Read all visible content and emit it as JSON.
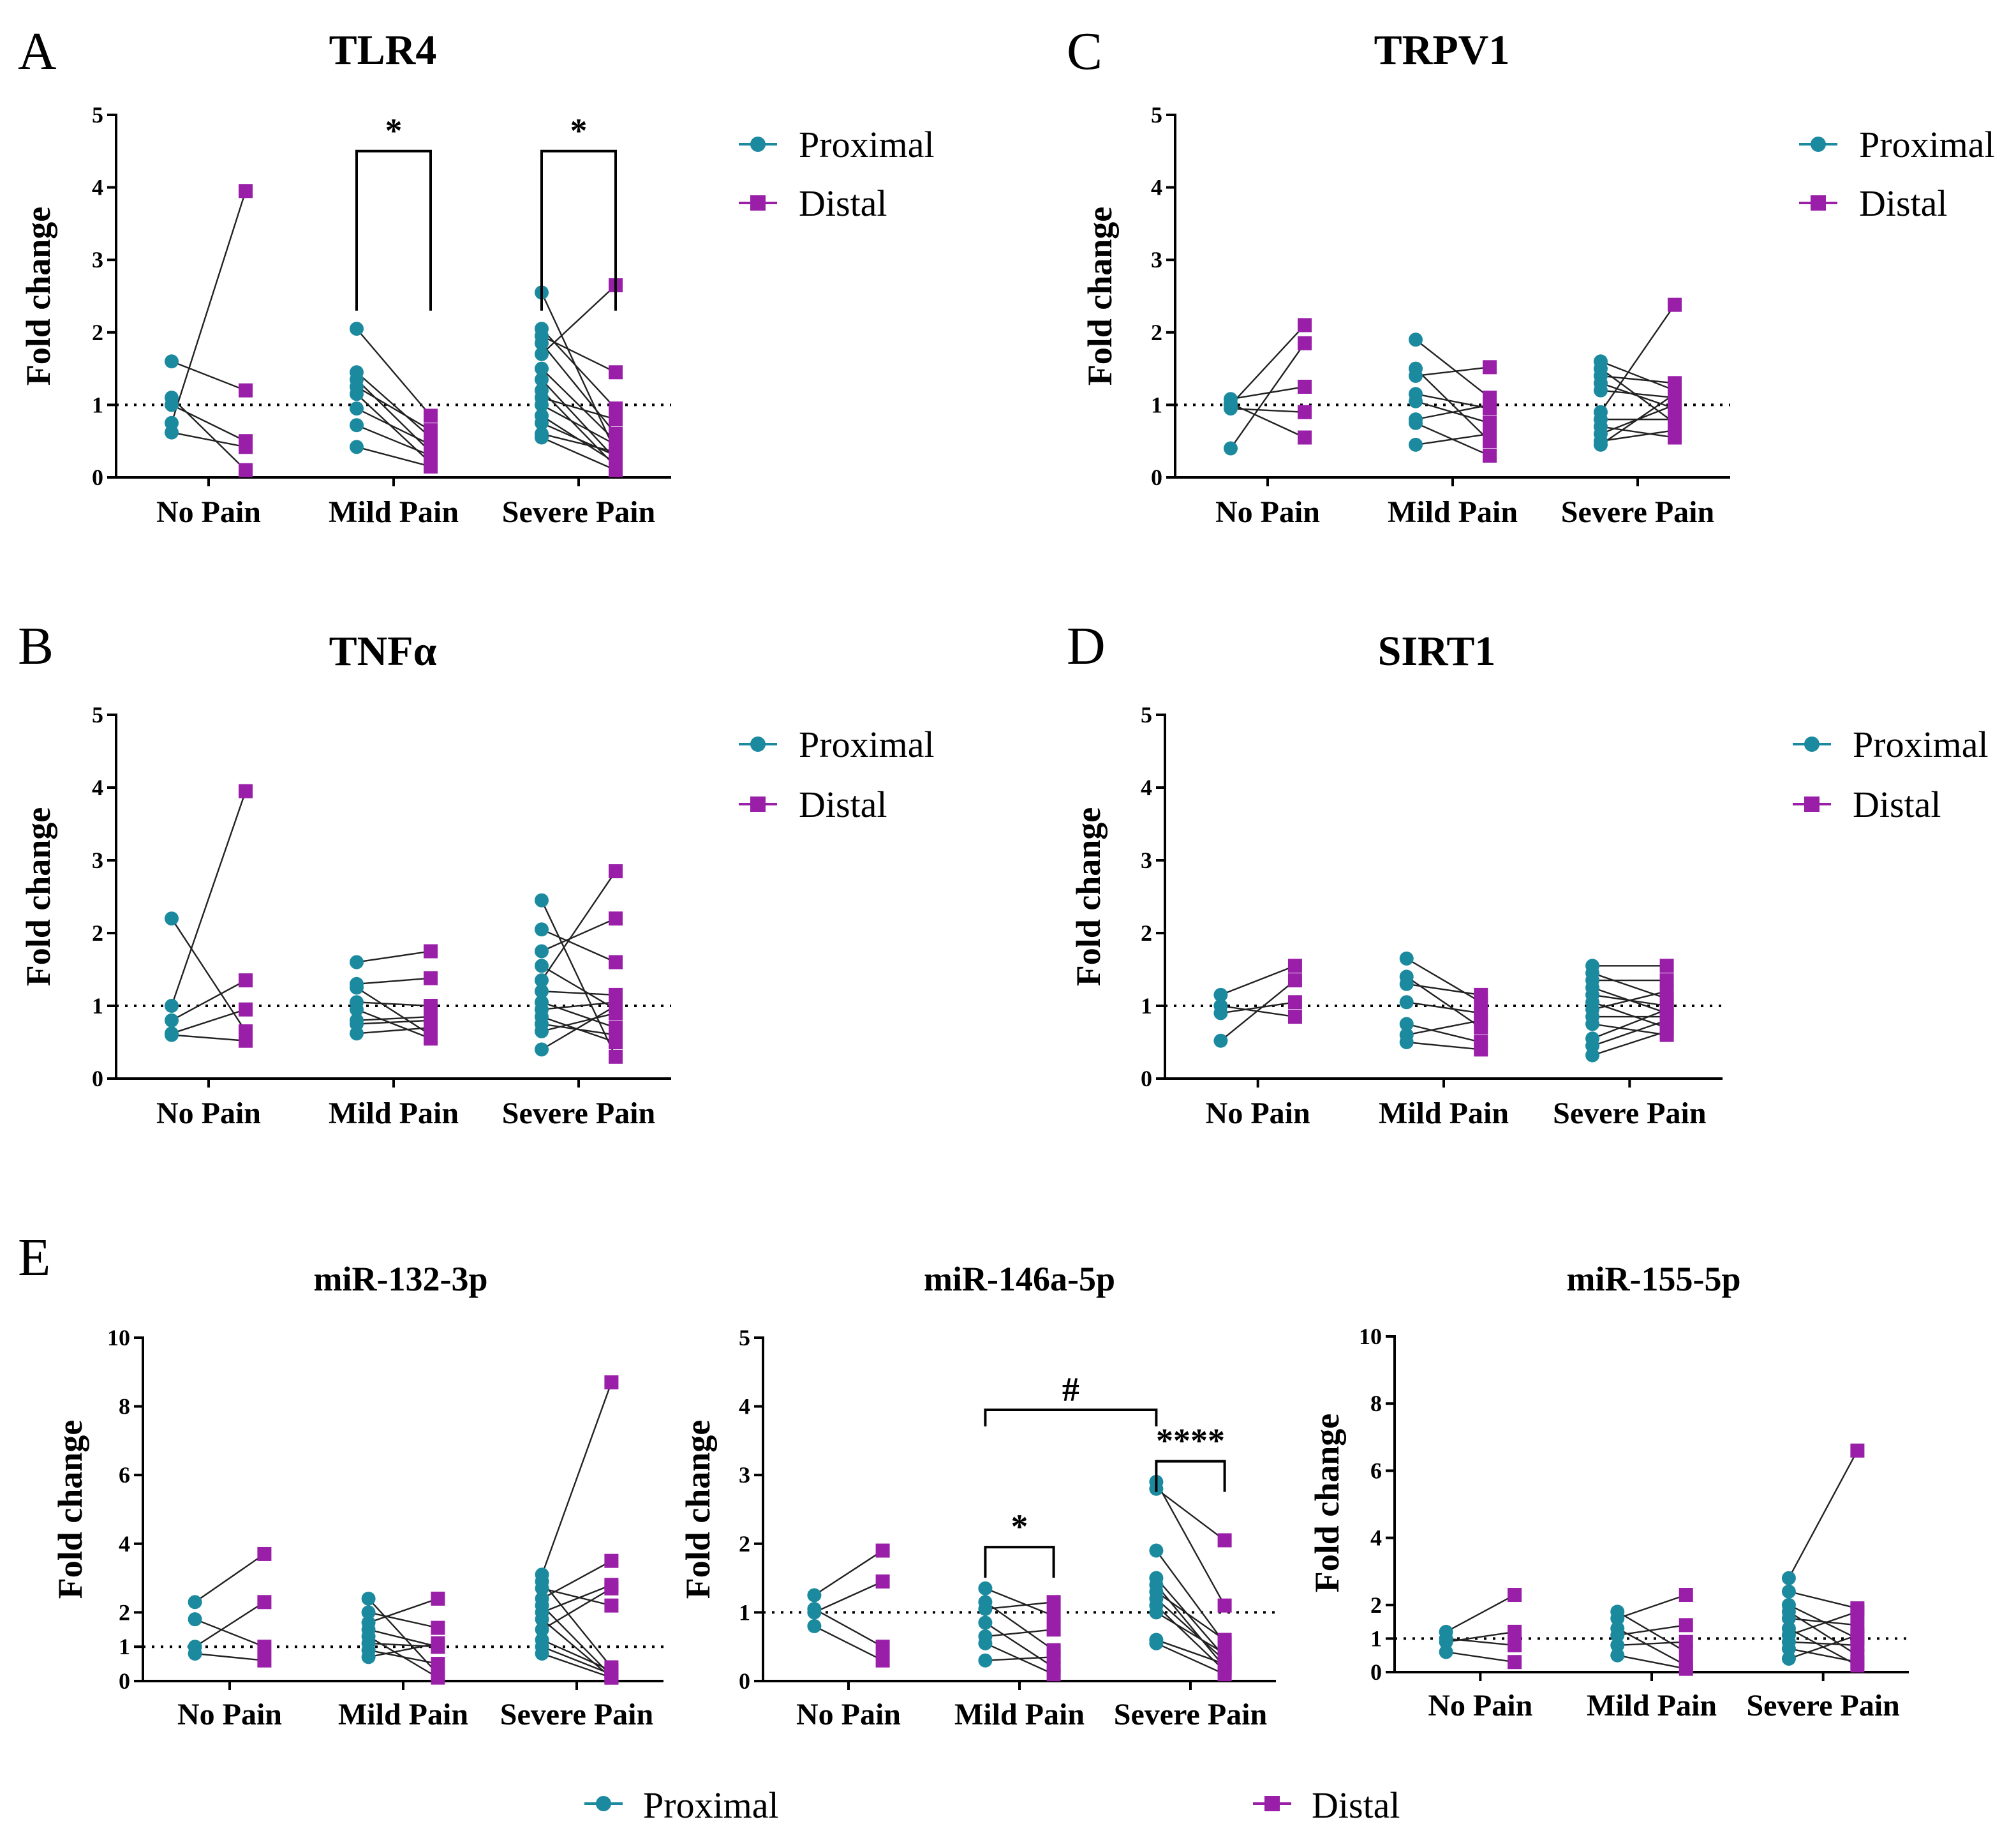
{
  "figure": {
    "colors": {
      "proximal": "#1b8a9e",
      "distal": "#9a1fa8",
      "axis": "#000000",
      "line": "#222222"
    },
    "legend": {
      "proximal": "Proximal",
      "distal": "Distal"
    }
  },
  "chart_data": [
    {
      "panel": "A",
      "title": "TLR4",
      "type": "scatter",
      "ylabel": "Fold change",
      "categories": [
        "No Pain",
        "Mild Pain",
        "Severe Pain"
      ],
      "ylim": [
        0,
        5
      ],
      "yticks": [
        "0",
        "1",
        "2",
        "3",
        "4",
        "5"
      ],
      "reference_line": 1,
      "pairs": [
        [
          [
            1.6,
            1.2
          ],
          [
            1.1,
            0.1
          ],
          [
            1.0,
            0.5
          ],
          [
            0.75,
            3.95
          ],
          [
            0.62,
            0.42
          ]
        ],
        [
          [
            2.05,
            0.85
          ],
          [
            1.45,
            0.55
          ],
          [
            1.35,
            0.35
          ],
          [
            1.25,
            0.65
          ],
          [
            1.15,
            0.2
          ],
          [
            0.95,
            0.45
          ],
          [
            0.72,
            0.3
          ],
          [
            0.42,
            0.15
          ]
        ],
        [
          [
            2.55,
            0.35
          ],
          [
            2.05,
            0.95
          ],
          [
            1.95,
            1.45
          ],
          [
            1.85,
            0.6
          ],
          [
            1.7,
            2.65
          ],
          [
            1.5,
            0.5
          ],
          [
            1.35,
            0.25
          ],
          [
            1.2,
            0.15
          ],
          [
            1.1,
            0.8
          ],
          [
            1.0,
            0.45
          ],
          [
            0.85,
            0.2
          ],
          [
            0.75,
            0.3
          ],
          [
            0.6,
            0.35
          ],
          [
            0.55,
            0.1
          ]
        ]
      ],
      "brackets": [
        {
          "from": 1,
          "to": 1,
          "level": 4.5,
          "label": "*",
          "style": "pair"
        },
        {
          "from": 2,
          "to": 2,
          "level": 4.5,
          "label": "*",
          "style": "pair"
        }
      ]
    },
    {
      "panel": "B",
      "title": "TNFα",
      "type": "scatter",
      "ylabel": "Fold change",
      "categories": [
        "No Pain",
        "Mild Pain",
        "Severe Pain"
      ],
      "ylim": [
        0,
        5
      ],
      "yticks": [
        "0",
        "1",
        "2",
        "3",
        "4",
        "5"
      ],
      "reference_line": 1,
      "pairs": [
        [
          [
            2.2,
            0.65
          ],
          [
            1.0,
            3.95
          ],
          [
            0.8,
            1.35
          ],
          [
            0.62,
            0.95
          ],
          [
            0.6,
            0.52
          ]
        ],
        [
          [
            1.6,
            1.75
          ],
          [
            1.3,
            1.38
          ],
          [
            1.25,
            0.6
          ],
          [
            1.05,
            1.0
          ],
          [
            0.95,
            0.55
          ],
          [
            0.8,
            0.85
          ],
          [
            0.75,
            0.8
          ],
          [
            0.62,
            0.7
          ]
        ],
        [
          [
            2.45,
            0.3
          ],
          [
            2.05,
            1.6
          ],
          [
            1.75,
            2.2
          ],
          [
            1.55,
            0.95
          ],
          [
            1.35,
            2.85
          ],
          [
            1.2,
            1.15
          ],
          [
            1.05,
            0.7
          ],
          [
            0.95,
            1.05
          ],
          [
            0.85,
            0.5
          ],
          [
            0.75,
            0.6
          ],
          [
            0.65,
            0.9
          ],
          [
            0.4,
            1.0
          ]
        ]
      ],
      "brackets": []
    },
    {
      "panel": "C",
      "title": "TRPV1",
      "type": "scatter",
      "ylabel": "Fold change",
      "categories": [
        "No Pain",
        "Mild Pain",
        "Severe Pain"
      ],
      "ylim": [
        0,
        5
      ],
      "yticks": [
        "0",
        "1",
        "2",
        "3",
        "4",
        "5"
      ],
      "reference_line": 1,
      "pairs": [
        [
          [
            1.08,
            1.25
          ],
          [
            1.02,
            0.55
          ],
          [
            1.0,
            2.1
          ],
          [
            0.95,
            0.9
          ],
          [
            0.4,
            1.85
          ]
        ],
        [
          [
            1.9,
            1.1
          ],
          [
            1.5,
            0.5
          ],
          [
            1.4,
            1.52
          ],
          [
            1.15,
            0.95
          ],
          [
            1.05,
            0.75
          ],
          [
            0.8,
            1.0
          ],
          [
            0.75,
            0.3
          ],
          [
            0.45,
            0.6
          ]
        ],
        [
          [
            1.6,
            1.2
          ],
          [
            1.5,
            0.75
          ],
          [
            1.4,
            1.3
          ],
          [
            1.3,
            0.95
          ],
          [
            1.2,
            1.1
          ],
          [
            0.9,
            2.38
          ],
          [
            0.8,
            0.8
          ],
          [
            0.7,
            0.55
          ],
          [
            0.6,
            1.0
          ],
          [
            0.5,
            0.65
          ],
          [
            0.45,
            1.15
          ]
        ]
      ],
      "brackets": []
    },
    {
      "panel": "D",
      "title": "SIRT1",
      "type": "scatter",
      "ylabel": "Fold change",
      "categories": [
        "No Pain",
        "Mild Pain",
        "Severe Pain"
      ],
      "ylim": [
        0,
        5
      ],
      "yticks": [
        "0",
        "1",
        "2",
        "3",
        "4",
        "5"
      ],
      "reference_line": 1,
      "pairs": [
        [
          [
            1.15,
            1.55
          ],
          [
            1.0,
            0.85
          ],
          [
            0.9,
            1.05
          ],
          [
            0.52,
            1.35
          ]
        ],
        [
          [
            1.65,
            1.05
          ],
          [
            1.4,
            0.7
          ],
          [
            1.3,
            1.15
          ],
          [
            1.05,
            0.9
          ],
          [
            0.75,
            0.5
          ],
          [
            0.6,
            0.8
          ],
          [
            0.5,
            0.4
          ]
        ],
        [
          [
            1.55,
            1.55
          ],
          [
            1.45,
            1.1
          ],
          [
            1.35,
            1.35
          ],
          [
            1.25,
            0.9
          ],
          [
            1.15,
            1.0
          ],
          [
            1.05,
            0.7
          ],
          [
            0.95,
            1.2
          ],
          [
            0.85,
            0.85
          ],
          [
            0.75,
            0.6
          ],
          [
            0.55,
            0.95
          ],
          [
            0.45,
            0.8
          ],
          [
            0.32,
            0.65
          ]
        ]
      ],
      "brackets": []
    },
    {
      "panel": "E",
      "title": "miR-132-3p",
      "type": "scatter",
      "ylabel": "Fold change",
      "categories": [
        "No Pain",
        "Mild Pain",
        "Severe Pain"
      ],
      "ylim": [
        0,
        10
      ],
      "yticks": [
        "0",
        "1",
        "2",
        "4",
        "6",
        "8",
        "10"
      ],
      "reference_line": 1,
      "pairs": [
        [
          [
            2.3,
            3.7
          ],
          [
            1.8,
            1.0
          ],
          [
            1.0,
            2.3
          ],
          [
            0.8,
            0.6
          ]
        ],
        [
          [
            2.4,
            0.2
          ],
          [
            2.0,
            1.55
          ],
          [
            1.7,
            2.4
          ],
          [
            1.5,
            1.0
          ],
          [
            1.3,
            0.1
          ],
          [
            1.1,
            1.0
          ],
          [
            0.9,
            0.5
          ],
          [
            0.7,
            1.1
          ]
        ],
        [
          [
            3.1,
            8.7
          ],
          [
            2.9,
            0.4
          ],
          [
            2.7,
            2.2
          ],
          [
            2.4,
            3.5
          ],
          [
            2.2,
            0.15
          ],
          [
            2.0,
            2.8
          ],
          [
            1.8,
            0.1
          ],
          [
            1.5,
            2.7
          ],
          [
            1.2,
            0.3
          ],
          [
            1.0,
            0.2
          ],
          [
            0.8,
            0.1
          ]
        ]
      ],
      "brackets": []
    },
    {
      "panel": "",
      "title": "miR-146a-5p",
      "type": "scatter",
      "ylabel": "Fold change",
      "categories": [
        "No Pain",
        "Mild Pain",
        "Severe Pain"
      ],
      "ylim": [
        0,
        5
      ],
      "yticks": [
        "0",
        "1",
        "2",
        "3",
        "4",
        "5"
      ],
      "reference_line": 1,
      "pairs": [
        [
          [
            1.25,
            1.9
          ],
          [
            1.05,
            0.5
          ],
          [
            1.0,
            1.45
          ],
          [
            0.8,
            0.3
          ]
        ],
        [
          [
            1.35,
            0.95
          ],
          [
            1.15,
            0.45
          ],
          [
            1.05,
            1.15
          ],
          [
            0.85,
            0.2
          ],
          [
            0.65,
            0.75
          ],
          [
            0.55,
            0.1
          ],
          [
            0.3,
            0.35
          ]
        ],
        [
          [
            2.9,
            1.1
          ],
          [
            2.8,
            2.05
          ],
          [
            1.9,
            0.55
          ],
          [
            1.5,
            0.35
          ],
          [
            1.4,
            0.2
          ],
          [
            1.3,
            0.6
          ],
          [
            1.2,
            0.3
          ],
          [
            1.1,
            0.15
          ],
          [
            1.0,
            0.4
          ],
          [
            0.6,
            0.25
          ],
          [
            0.55,
            0.1
          ]
        ]
      ],
      "brackets": [
        {
          "from": 1,
          "to": 1,
          "level": 1.95,
          "label": "*",
          "style": "pair"
        },
        {
          "from": 2,
          "to": 2,
          "level": 3.2,
          "label": "****",
          "style": "pair"
        },
        {
          "from": 1,
          "to": 2,
          "level": 3.95,
          "label": "#",
          "style": "between"
        }
      ]
    },
    {
      "panel": "",
      "title": "miR-155-5p",
      "type": "scatter",
      "ylabel": "Fold change",
      "categories": [
        "No Pain",
        "Mild Pain",
        "Severe Pain"
      ],
      "ylim": [
        0,
        10
      ],
      "yticks": [
        "0",
        "1",
        "2",
        "4",
        "6",
        "8",
        "10"
      ],
      "reference_line": 1,
      "pairs": [
        [
          [
            1.2,
            2.3
          ],
          [
            1.0,
            0.8
          ],
          [
            0.9,
            1.2
          ],
          [
            0.6,
            0.3
          ]
        ],
        [
          [
            1.8,
            0.6
          ],
          [
            1.6,
            2.3
          ],
          [
            1.3,
            0.2
          ],
          [
            1.1,
            1.4
          ],
          [
            0.8,
            0.9
          ],
          [
            0.5,
            0.1
          ]
        ],
        [
          [
            2.8,
            6.6
          ],
          [
            2.4,
            1.9
          ],
          [
            2.0,
            1.0
          ],
          [
            1.8,
            0.5
          ],
          [
            1.6,
            1.4
          ],
          [
            1.3,
            0.2
          ],
          [
            1.1,
            1.8
          ],
          [
            0.9,
            0.8
          ],
          [
            0.7,
            0.3
          ],
          [
            0.4,
            1.1
          ]
        ]
      ],
      "brackets": []
    }
  ]
}
